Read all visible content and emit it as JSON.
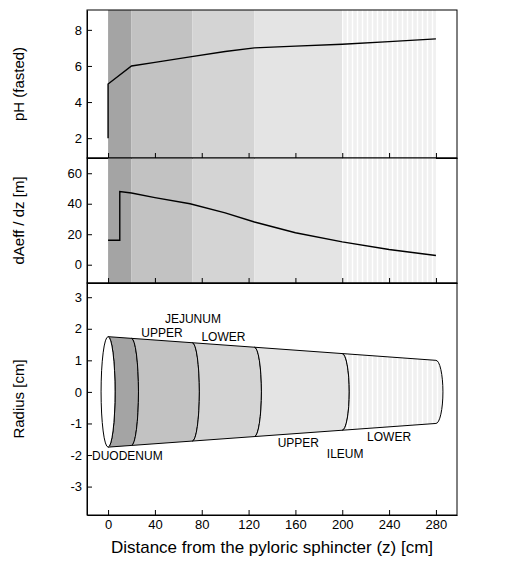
{
  "chart_data": [
    {
      "type": "line",
      "y_label": "pH (fasted)",
      "x": [
        0,
        0,
        20,
        40,
        70,
        100,
        125,
        160,
        200,
        240,
        280
      ],
      "values": [
        2,
        5,
        6,
        6.2,
        6.5,
        6.8,
        7.0,
        7.1,
        7.2,
        7.35,
        7.5
      ],
      "color": "#000000",
      "xlim": [
        -18,
        298
      ],
      "xticks": [
        0,
        40,
        80,
        120,
        160,
        200,
        240,
        280
      ],
      "ylim": [
        0.9,
        9.1
      ],
      "yticks": [
        2,
        4,
        6,
        8
      ],
      "tick_labels": "y"
    },
    {
      "type": "line",
      "y_label": "dAeff / dz [m]",
      "x": [
        0,
        10,
        10,
        20,
        40,
        70,
        100,
        125,
        160,
        200,
        240,
        280
      ],
      "values": [
        16,
        16,
        48,
        47,
        44,
        40,
        34,
        28,
        21,
        15,
        10,
        6
      ],
      "color": "#000000",
      "xlim": [
        -18,
        298
      ],
      "xticks": [
        0,
        40,
        80,
        120,
        160,
        200,
        240,
        280
      ],
      "ylim": [
        -12,
        70
      ],
      "yticks": [
        0,
        20,
        40,
        60
      ],
      "tick_labels": "y"
    },
    {
      "type": "tube",
      "x_label": "Distance from the pyloric sphincter (z) [cm]",
      "y_label": "Radius [cm]",
      "x": [
        0,
        280
      ],
      "values": [
        1.75,
        1.0
      ],
      "xlim": [
        -18,
        298
      ],
      "xticks": [
        0,
        40,
        80,
        120,
        160,
        200,
        240,
        280
      ],
      "ylim": [
        -3.9,
        3.45
      ],
      "yticks": [
        -3,
        -2,
        -1,
        0,
        1,
        2,
        3
      ],
      "segments": [
        {
          "label": "DUODENUM",
          "start": 0,
          "end": 20,
          "color": "#a4a4a4"
        },
        {
          "label": "UPPER",
          "group": "JEJUNUM",
          "start": 20,
          "end": 72,
          "color": "#c2c2c2"
        },
        {
          "label": "LOWER",
          "group": "JEJUNUM",
          "start": 72,
          "end": 125,
          "color": "#d4d4d4"
        },
        {
          "label": "UPPER",
          "group": "ILEUM",
          "start": 125,
          "end": 200,
          "color": "#e4e4e4"
        },
        {
          "label": "LOWER",
          "group": "ILEUM",
          "start": 200,
          "end": 280,
          "color": "#f0f0f0"
        }
      ]
    }
  ]
}
